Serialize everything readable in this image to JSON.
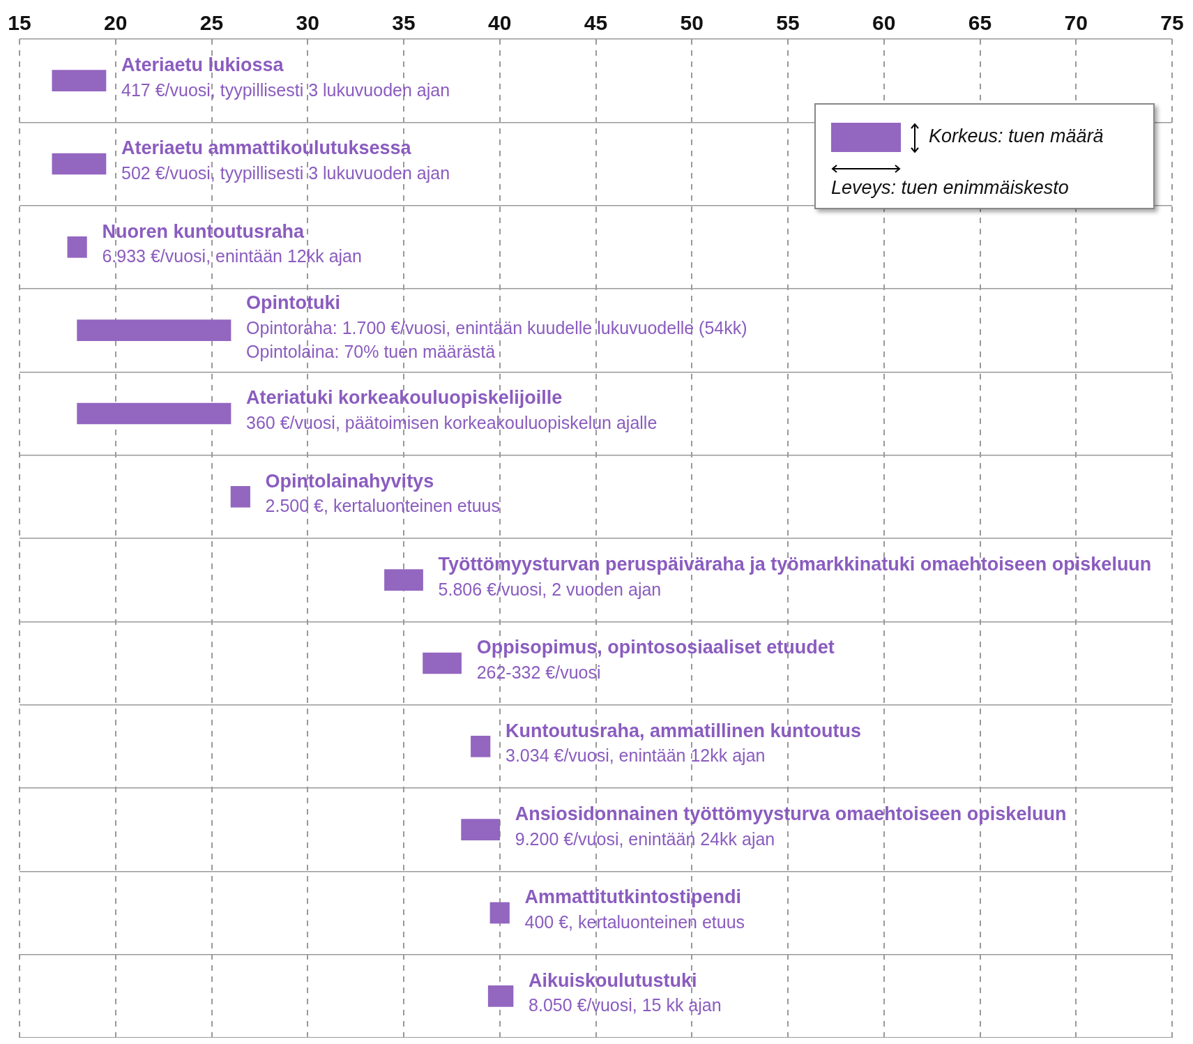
{
  "chart_data": {
    "type": "bar",
    "orientation": "horizontal",
    "categories": [
      "Ateriaetu lukiossa",
      "Ateriaetu ammattikoulutuksessa",
      "Nuoren kuntoutusraha",
      "Opintotuki",
      "Ateriatuki korkeakouluopiskelijoille",
      "Opintolainahyvitys",
      "Työttömyysturvan peruspäiväraha ja työmarkkinatuki omaehtoiseen opiskeluun",
      "Oppisopimus, opintososiaaliset etuudet",
      "Kuntoutusraha, ammatillinen kuntoutus",
      "Ansiosidonnainen työttömyysturva omaehtoiseen opiskeluun",
      "Ammattitutkintostipendi",
      "Aikuiskoulutustuki"
    ],
    "base": [
      16.7,
      16.7,
      17.5,
      18,
      18,
      26,
      34,
      36,
      38.5,
      38,
      39.5,
      39.4
    ],
    "values": [
      2.8,
      2.8,
      1,
      8,
      8,
      1,
      2,
      2,
      1,
      2,
      1,
      1.3
    ],
    "colors": [
      "#9366c0",
      "#9366c0",
      "#9366c0",
      "#9366c0",
      "#9366c0",
      "#9366c0",
      "#9366c0",
      "#9366c0",
      "#9366c0",
      "#9366c0",
      "#9366c0",
      "#9366c0"
    ],
    "xlim": [
      15,
      75
    ],
    "xticks": [
      15,
      20,
      25,
      30,
      35,
      40,
      45,
      50,
      55,
      60,
      65,
      70,
      75
    ],
    "grid": true,
    "tick_labels": "x",
    "annotations": [
      "417 €/vuosi, tyypillisesti 3 lukuvuoden ajan",
      "502 €/vuosi, tyypillisesti 3 lukuvuoden ajan",
      "6.933 €/vuosi, enintään 12kk ajan",
      "Opintoraha: 1.700 €/vuosi, enintään kuudelle lukuvuodelle (54kk)\nOpintolaina: 70% tuen määrästä",
      "360 €/vuosi, päätoimisen korkeakouluopiskelun ajalle",
      "2.500 €, kertaluonteinen etuus",
      "5.806 €/vuosi, 2 vuoden ajan",
      "262-332 €/vuosi",
      "3.034 €/vuosi, enintään 12kk ajan",
      "9.200 €/vuosi, enintään 24kk ajan",
      "400 €, kertaluonteinen etuus",
      "8.050 €/vuosi, 15 kk ajan",
      "Korkeus: tuen määrä",
      "Leveys: tuen enimmäiskesto"
    ]
  }
}
